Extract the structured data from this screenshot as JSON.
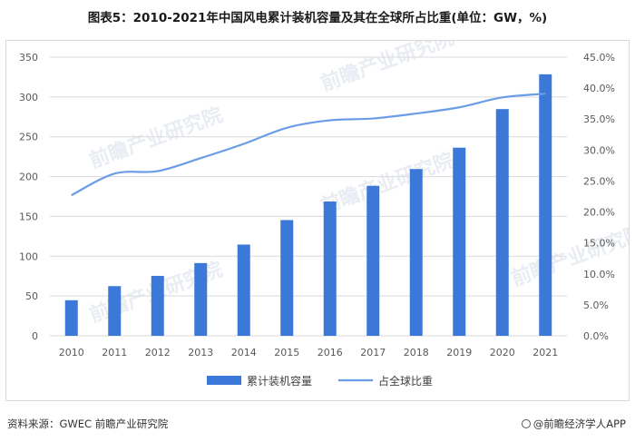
{
  "title": "图表5：2010-2021年中国风电累计装机容量及其在全球所占比重(单位：GW，%)",
  "footer": {
    "source": "资料来源：GWEC 前瞻产业研究院",
    "credit": "@前瞻经济学人APP"
  },
  "watermark_text": "前瞻产业研究院",
  "colors": {
    "bar": "#3b78d8",
    "line": "#6b9ce6",
    "grid": "#d9d9d9",
    "axis_text": "#595959"
  },
  "chart_data": {
    "type": "bar",
    "title": "2010-2021年中国风电累计装机容量及其在全球所占比重(单位：GW，%)",
    "categories": [
      "2010",
      "2011",
      "2012",
      "2013",
      "2014",
      "2015",
      "2016",
      "2017",
      "2018",
      "2019",
      "2020",
      "2021"
    ],
    "series": [
      {
        "name": "累计装机容量",
        "type": "bar",
        "axis": "left",
        "values": [
          44.7,
          62.4,
          75.3,
          91.4,
          114.6,
          145.4,
          168.7,
          188.4,
          209.5,
          236.3,
          284.8,
          328.5
        ]
      },
      {
        "name": "占全球比重",
        "type": "line",
        "axis": "right",
        "values": [
          22.7,
          26.2,
          26.6,
          28.7,
          31.0,
          33.6,
          34.8,
          35.1,
          35.9,
          36.9,
          38.5,
          39.1
        ]
      }
    ],
    "y_left": {
      "min": 0,
      "max": 350,
      "ticks": [
        0,
        50,
        100,
        150,
        200,
        250,
        300,
        350
      ]
    },
    "y_right": {
      "min": 0,
      "max": 45,
      "ticks": [
        "0.0%",
        "5.0%",
        "10.0%",
        "15.0%",
        "20.0%",
        "25.0%",
        "30.0%",
        "35.0%",
        "40.0%",
        "45.0%"
      ]
    },
    "grid": true,
    "legend": [
      "累计装机容量",
      "占全球比重"
    ],
    "legend_position": "bottom"
  }
}
